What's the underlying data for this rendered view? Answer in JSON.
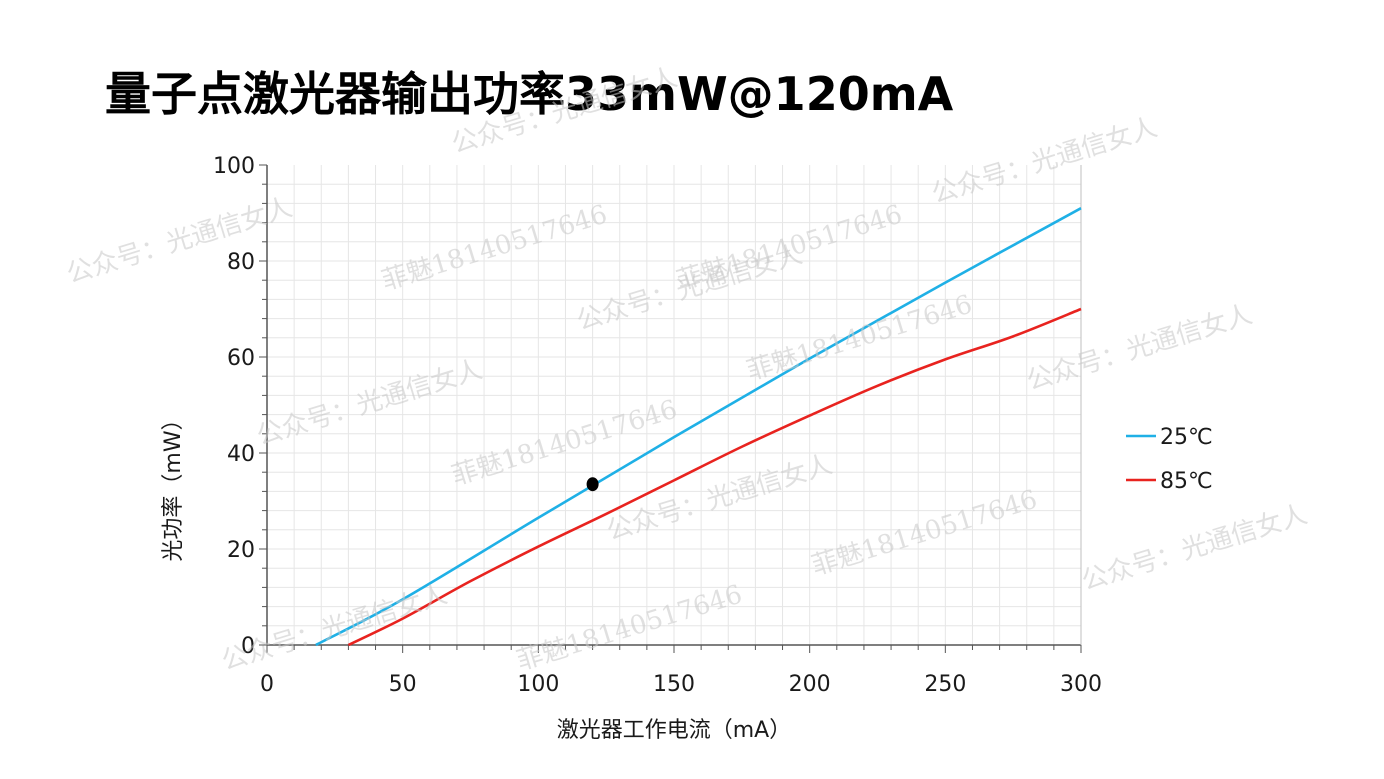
{
  "title": "量子点激光器输出功率33mW@120mA",
  "watermarks": {
    "account": "公众号：光通信女人",
    "phone": "菲魅18140517646"
  },
  "chart_data": {
    "type": "line",
    "title": "量子点激光器输出功率33mW@120mA",
    "xlabel": "激光器工作电流（mA）",
    "ylabel": "光功率（mW）",
    "xlim": [
      0,
      300
    ],
    "ylim": [
      0,
      100
    ],
    "xticks": [
      0,
      50,
      100,
      150,
      200,
      250,
      300
    ],
    "yticks": [
      0,
      20,
      40,
      60,
      80,
      100
    ],
    "grid": true,
    "legend_position": "right",
    "series": [
      {
        "name": "25℃",
        "color": "#1fb0e6",
        "x": [
          0,
          18,
          50,
          100,
          150,
          200,
          250,
          300
        ],
        "y": [
          0,
          0,
          9.5,
          26.5,
          43.3,
          59.7,
          75.5,
          91
        ]
      },
      {
        "name": "85℃",
        "color": "#e8231f",
        "x": [
          0,
          30,
          50,
          75,
          100,
          125,
          150,
          175,
          200,
          225,
          250,
          275,
          300
        ],
        "y": [
          0,
          0,
          5.5,
          13.3,
          20.5,
          27.3,
          34.3,
          41.3,
          47.8,
          54,
          59.5,
          64.3,
          70
        ]
      }
    ],
    "annotations": [
      {
        "type": "point",
        "x": 120,
        "y": 33.5,
        "color": "#000000"
      }
    ]
  }
}
